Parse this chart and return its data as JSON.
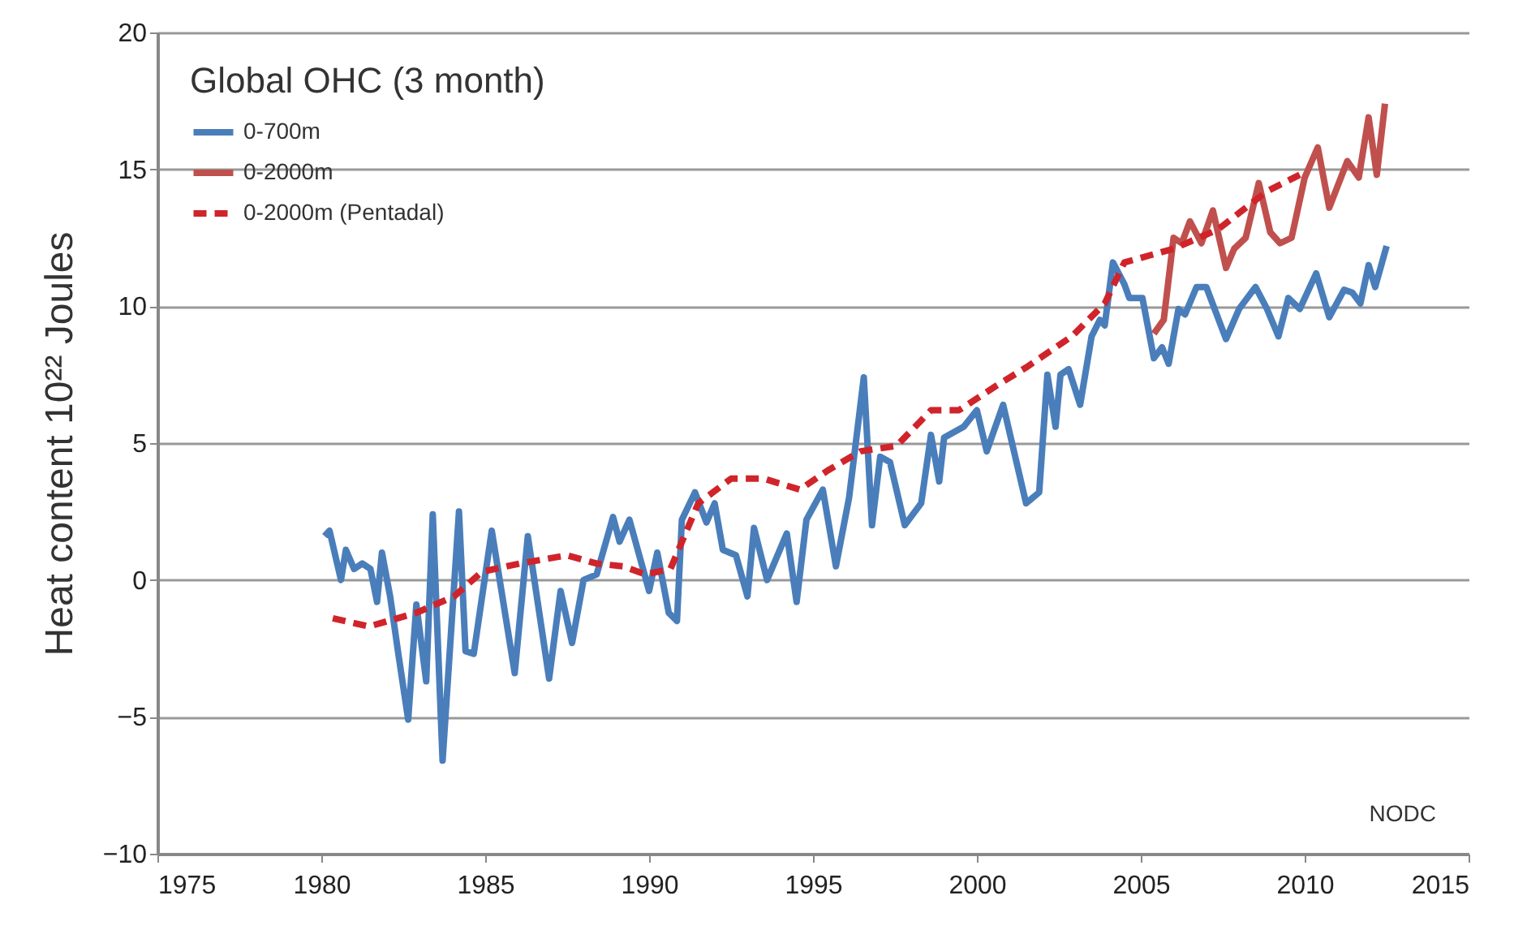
{
  "chart_data": {
    "type": "line",
    "ylabel": "Heat content 10²² Joules",
    "legend_title": "Global OHC (3 month)",
    "annotations": [
      "NODC"
    ],
    "xlim": [
      1975,
      2015
    ],
    "xticks": [
      1975,
      1980,
      1985,
      1990,
      1995,
      2000,
      2005,
      2010,
      2015
    ],
    "ylim": [
      -10,
      20
    ],
    "yticks": [
      -10,
      -5,
      0,
      5,
      10,
      15,
      20
    ],
    "grid": "y",
    "legend": "top left",
    "marker": "none",
    "series": [
      {
        "name": "0-700m",
        "color": "#4a7ebb",
        "line_style": "solid",
        "x": [
          1980.1,
          1980.25,
          1980.6,
          1980.75,
          1981.0,
          1981.25,
          1981.5,
          1981.7,
          1981.85,
          1982.1,
          1982.35,
          1982.65,
          1982.9,
          1983.2,
          1983.4,
          1983.7,
          1984.2,
          1984.4,
          1984.65,
          1985.2,
          1985.9,
          1986.3,
          1986.95,
          1987.3,
          1987.65,
          1988.0,
          1988.4,
          1988.9,
          1989.1,
          1989.4,
          1990.0,
          1990.25,
          1990.6,
          1990.85,
          1991.0,
          1991.4,
          1991.75,
          1992.0,
          1992.25,
          1992.65,
          1993.0,
          1993.2,
          1993.6,
          1994.2,
          1994.5,
          1994.8,
          1995.3,
          1995.7,
          1996.1,
          1996.55,
          1996.8,
          1997.05,
          1997.35,
          1997.8,
          1998.3,
          1998.6,
          1998.85,
          1999.0,
          1999.6,
          2000.0,
          2000.3,
          2000.8,
          2001.5,
          2001.9,
          2002.15,
          2002.4,
          2002.55,
          2002.8,
          2003.15,
          2003.5,
          2003.75,
          2003.9,
          2004.15,
          2004.5,
          2004.65,
          2005.05,
          2005.4,
          2005.65,
          2005.85,
          2006.15,
          2006.35,
          2006.7,
          2007.0,
          2007.6,
          2008.0,
          2008.5,
          2008.85,
          2009.2,
          2009.5,
          2009.85,
          2010.35,
          2010.75,
          2011.2,
          2011.45,
          2011.7,
          2011.95,
          2012.15,
          2012.5
        ],
        "values": [
          1.6,
          1.8,
          0.0,
          1.1,
          0.4,
          0.6,
          0.4,
          -0.8,
          1.0,
          -0.6,
          -2.7,
          -5.1,
          -0.9,
          -3.7,
          2.4,
          -6.6,
          2.5,
          -2.6,
          -2.7,
          1.8,
          -3.4,
          1.6,
          -3.6,
          -0.4,
          -2.3,
          0.0,
          0.2,
          2.3,
          1.4,
          2.2,
          -0.4,
          1.0,
          -1.2,
          -1.5,
          2.2,
          3.2,
          2.1,
          2.8,
          1.1,
          0.9,
          -0.6,
          1.9,
          0.0,
          1.7,
          -0.8,
          2.2,
          3.3,
          0.5,
          3.0,
          7.4,
          2.0,
          4.5,
          4.3,
          2.0,
          2.8,
          5.3,
          3.6,
          5.2,
          5.6,
          6.2,
          4.7,
          6.4,
          2.8,
          3.2,
          7.5,
          5.6,
          7.5,
          7.7,
          6.4,
          8.9,
          9.5,
          9.3,
          11.6,
          10.8,
          10.3,
          10.3,
          8.1,
          8.5,
          7.9,
          9.9,
          9.7,
          10.7,
          10.7,
          8.8,
          9.9,
          10.7,
          9.9,
          8.9,
          10.3,
          9.9,
          11.2,
          9.6,
          10.6,
          10.5,
          10.1,
          11.5,
          10.7,
          12.2
        ]
      },
      {
        "name": "0-2000m",
        "color": "#c0504d",
        "line_style": "solid",
        "x": [
          2005.4,
          2005.7,
          2006.0,
          2006.25,
          2006.5,
          2006.85,
          2007.2,
          2007.6,
          2007.85,
          2008.2,
          2008.6,
          2008.95,
          2009.25,
          2009.6,
          2010.0,
          2010.4,
          2010.75,
          2011.3,
          2011.65,
          2011.95,
          2012.2,
          2012.45
        ],
        "values": [
          9.0,
          9.5,
          12.5,
          12.3,
          13.1,
          12.3,
          13.5,
          11.4,
          12.1,
          12.5,
          14.5,
          12.7,
          12.3,
          12.5,
          14.7,
          15.8,
          13.6,
          15.3,
          14.7,
          16.9,
          14.8,
          17.4
        ]
      },
      {
        "name": "0-2000m (Pentadal)",
        "color": "#d0242b",
        "line_style": "dashed",
        "x": [
          1980.35,
          1981.45,
          1982.9,
          1984.05,
          1984.9,
          1986.05,
          1987.5,
          1988.4,
          1989.2,
          1989.9,
          1990.65,
          1991.5,
          1992.5,
          1993.5,
          1994.6,
          1995.45,
          1996.45,
          1997.55,
          1998.6,
          1999.45,
          2000.6,
          2001.55,
          2002.9,
          2003.9,
          2004.5,
          2006.0,
          2007.35,
          2008.85,
          2009.85
        ],
        "values": [
          -1.4,
          -1.7,
          -1.2,
          -0.6,
          0.3,
          0.6,
          0.9,
          0.6,
          0.5,
          0.2,
          0.4,
          2.8,
          3.7,
          3.7,
          3.3,
          4.0,
          4.7,
          4.9,
          6.2,
          6.2,
          7.1,
          7.8,
          8.9,
          10.1,
          11.6,
          12.1,
          12.8,
          14.2,
          14.8
        ]
      }
    ]
  }
}
